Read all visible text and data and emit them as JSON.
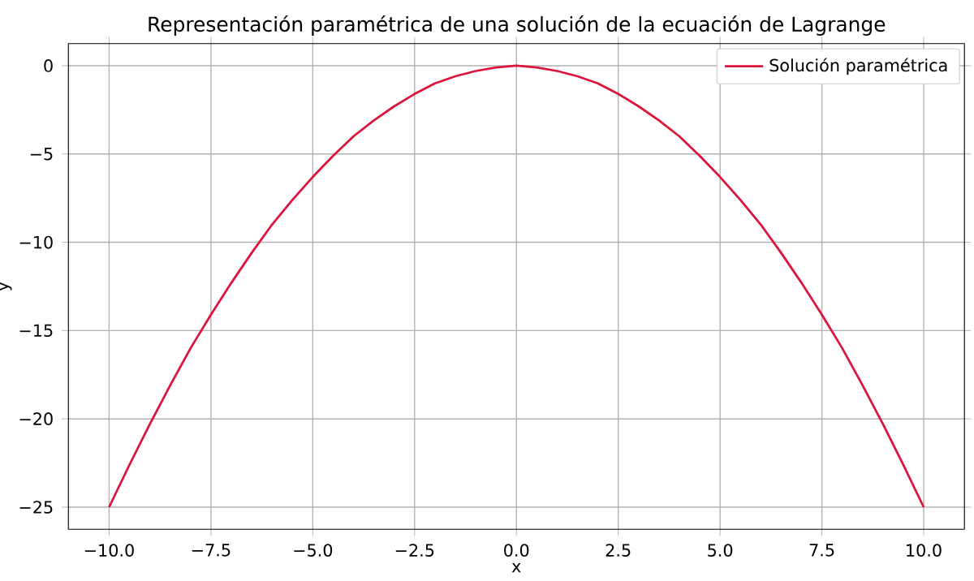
{
  "chart_data": {
    "type": "line",
    "title": "Representación paramétrica de una solución de la ecuación de Lagrange",
    "xlabel": "x",
    "ylabel": "y",
    "series": [
      {
        "name": "Solución paramétrica",
        "color": "#dc143c",
        "x": [
          -10,
          -9.5,
          -9,
          -8.5,
          -8,
          -7.5,
          -7,
          -6.5,
          -6,
          -5.5,
          -5,
          -4.5,
          -4,
          -3.5,
          -3,
          -2.5,
          -2,
          -1.5,
          -1,
          -0.5,
          0,
          0.5,
          1,
          1.5,
          2,
          2.5,
          3,
          3.5,
          4,
          4.5,
          5,
          5.5,
          6,
          6.5,
          7,
          7.5,
          8,
          8.5,
          9,
          9.5,
          10
        ],
        "values": [
          -25,
          -22.6,
          -20.3,
          -18.1,
          -16,
          -14.1,
          -12.3,
          -10.6,
          -9,
          -7.6,
          -6.3,
          -5.1,
          -4,
          -3.1,
          -2.3,
          -1.6,
          -1,
          -0.6,
          -0.3,
          -0.1,
          0,
          -0.1,
          -0.3,
          -0.6,
          -1,
          -1.6,
          -2.3,
          -3.1,
          -4,
          -5.1,
          -6.3,
          -7.6,
          -9,
          -10.6,
          -12.3,
          -14.1,
          -16,
          -18.1,
          -20.3,
          -22.6,
          -25
        ]
      }
    ],
    "xlim": [
      -11,
      11
    ],
    "ylim": [
      -26.25,
      1.25
    ],
    "xticks": [
      {
        "value": -10,
        "label": "−10.0"
      },
      {
        "value": -7.5,
        "label": "−7.5"
      },
      {
        "value": -5,
        "label": "−5.0"
      },
      {
        "value": -2.5,
        "label": "−2.5"
      },
      {
        "value": 0,
        "label": "0.0"
      },
      {
        "value": 2.5,
        "label": "2.5"
      },
      {
        "value": 5,
        "label": "5.0"
      },
      {
        "value": 7.5,
        "label": "7.5"
      },
      {
        "value": 10,
        "label": "10.0"
      }
    ],
    "yticks": [
      {
        "value": -25,
        "label": "−25"
      },
      {
        "value": -20,
        "label": "−20"
      },
      {
        "value": -15,
        "label": "−15"
      },
      {
        "value": -10,
        "label": "−10"
      },
      {
        "value": -5,
        "label": "−5"
      },
      0
    ],
    "grid": true,
    "legend": "top right",
    "marker": "none",
    "line_style": "solid"
  }
}
